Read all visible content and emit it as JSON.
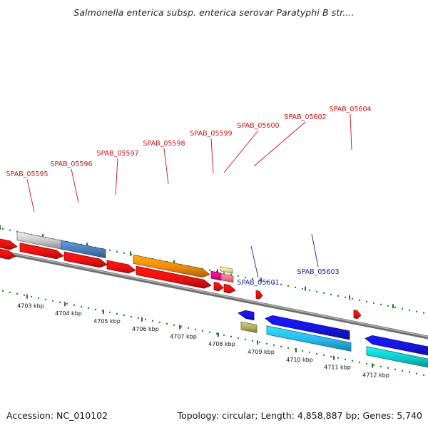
{
  "title": "Salmonella enterica subsp. enterica serovar Paratyphi B str....",
  "accession": "Accession: NC_010102",
  "summary": "Topology: circular; Length: 4,858,887 bp; Genes: 5,740",
  "colors": {
    "backbone": "#8c8c8c",
    "tick": "#1f7a1f",
    "top_label": "#cc1111",
    "bottom_label": "#1a1aa8",
    "red": "#ee1111",
    "orange": "#f08a0e",
    "grey": "#c4c4c4",
    "steelblue": "#4a7eb8",
    "blue": "#1515dd",
    "skyblue": "#29b6ee",
    "cyan": "#10c8c8",
    "magenta": "#e0108c",
    "pink": "#f0788c",
    "khaki": "#b0a860",
    "beige": "#f0e090"
  },
  "kbp_labels": [
    "4703 kbp",
    "4704 kbp",
    "4705 kbp",
    "4706 kbp",
    "4707 kbp",
    "4708 kbp",
    "4709 kbp",
    "4710 kbp",
    "4711 kbp",
    "4712 kbp"
  ],
  "gene_labels_top": [
    "SPAB_05595",
    "SPAB_05596",
    "SPAB_05597",
    "SPAB_05598",
    "SPAB_05599",
    "SPAB_05600",
    "SPAB_05602",
    "SPAB_05604"
  ],
  "gene_labels_bottom": [
    "SPAB_05601",
    "SPAB_05603"
  ]
}
